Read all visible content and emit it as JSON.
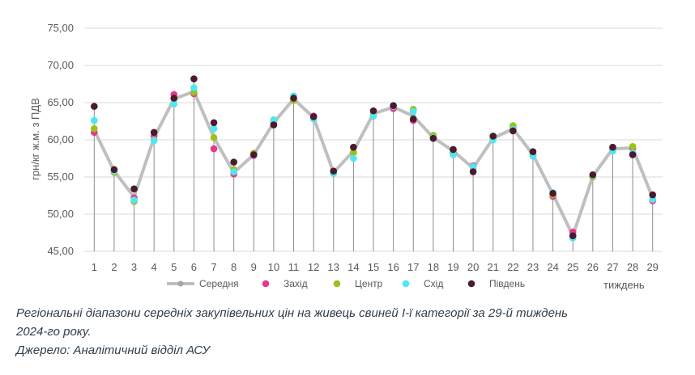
{
  "chart_data": {
    "type": "line",
    "ylabel": "грн/кг ж.м. з ПДВ",
    "xlabel": "тиждень",
    "ylim": [
      45,
      75
    ],
    "yticks": [
      "45,00",
      "50,00",
      "55,00",
      "60,00",
      "65,00",
      "70,00",
      "75,00"
    ],
    "ytick_values": [
      45,
      50,
      55,
      60,
      65,
      70,
      75
    ],
    "categories": [
      "1",
      "2",
      "3",
      "4",
      "5",
      "6",
      "7",
      "8",
      "9",
      "10",
      "11",
      "12",
      "13",
      "14",
      "15",
      "16",
      "17",
      "18",
      "19",
      "20",
      "21",
      "22",
      "23",
      "24",
      "25",
      "26",
      "27",
      "28",
      "29"
    ],
    "grid": "horizontal",
    "legend": "bottom",
    "series": [
      {
        "name": "Середня",
        "style": "line",
        "color": "#bfbfbf",
        "values": [
          61.3,
          55.8,
          52.3,
          60.3,
          65.5,
          66.5,
          60.3,
          55.6,
          58.0,
          62.3,
          65.5,
          63.0,
          55.6,
          58.5,
          63.5,
          64.4,
          63.2,
          60.3,
          58.5,
          56.2,
          60.2,
          61.5,
          58.0,
          52.7,
          47.1,
          55.1,
          58.8,
          58.9,
          52.2
        ]
      },
      {
        "name": "Захід",
        "style": "point",
        "color": "#e8388e",
        "values": [
          61.0,
          55.7,
          52.2,
          60.5,
          66.1,
          66.2,
          58.8,
          55.4,
          57.9,
          62.5,
          65.3,
          63.2,
          55.5,
          58.3,
          63.2,
          64.2,
          62.6,
          60.5,
          58.2,
          56.5,
          60.4,
          61.6,
          57.9,
          52.4,
          47.6,
          55.0,
          58.8,
          58.9,
          51.8
        ]
      },
      {
        "name": "Центр",
        "style": "point",
        "color": "#99c21a",
        "values": [
          61.5,
          55.6,
          51.7,
          60.0,
          65.5,
          66.4,
          60.3,
          56.0,
          58.2,
          62.3,
          65.3,
          63.0,
          55.5,
          58.3,
          63.5,
          64.5,
          64.1,
          60.6,
          58.5,
          56.2,
          60.2,
          61.9,
          58.0,
          52.6,
          47.1,
          55.0,
          58.5,
          59.1,
          52.0
        ]
      },
      {
        "name": "Схід",
        "style": "point",
        "color": "#4de8f2",
        "values": [
          62.6,
          55.8,
          51.9,
          59.9,
          64.8,
          67.0,
          61.5,
          55.7,
          58.0,
          62.7,
          65.9,
          62.8,
          55.5,
          57.5,
          63.2,
          64.5,
          63.8,
          60.3,
          58.0,
          56.4,
          60.0,
          61.4,
          57.8,
          52.9,
          46.8,
          55.2,
          58.5,
          58.2,
          52.0
        ]
      },
      {
        "name": "Південь",
        "style": "point",
        "color": "#4a1a2f",
        "values": [
          64.5,
          56.0,
          53.4,
          61.0,
          65.6,
          68.2,
          62.3,
          57.0,
          58.0,
          62.0,
          65.6,
          63.1,
          55.8,
          59.0,
          63.9,
          64.6,
          62.8,
          60.2,
          58.7,
          55.7,
          60.5,
          61.2,
          58.4,
          52.8,
          47.1,
          55.3,
          59.0,
          58.0,
          52.6
        ]
      }
    ]
  },
  "caption": {
    "line1": "Регіональні діапазони середніх закупівельних цін на живець свиней І-ї категорії за 29-й тиждень",
    "line2": "2024-го року.",
    "line3": "Джерело: Аналітичний відділ АСУ"
  }
}
